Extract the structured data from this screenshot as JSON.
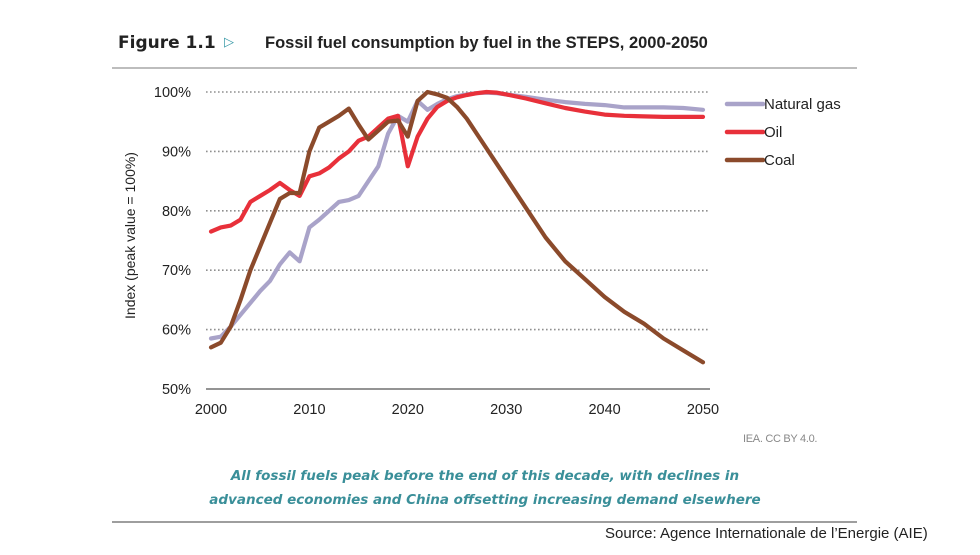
{
  "figure": {
    "label": "Figure 1.1",
    "arrow_icon": "triangle-right-icon",
    "title": "Fossil fuel consumption by fuel in the STEPS, 2000-2050",
    "credit": "IEA. CC BY 4.0.",
    "caption_line1": "All fossil fuels peak before the end of this decade, with declines in",
    "caption_line2": "advanced economies and China offsetting increasing demand elsewhere",
    "source": "Source: Agence Internationale de l’Energie (AIE)"
  },
  "chart_data": {
    "type": "line",
    "title": "Fossil fuel consumption by fuel in the STEPS, 2000-2050",
    "xlabel": "",
    "ylabel": "Index (peak value = 100%)",
    "xlim": [
      2000,
      2050
    ],
    "ylim": [
      50,
      100
    ],
    "x_ticks": [
      2000,
      2010,
      2020,
      2030,
      2040,
      2050
    ],
    "x_tick_labels": [
      "2000",
      "2010",
      "2020",
      "2030",
      "2040",
      "2050"
    ],
    "y_ticks": [
      50,
      60,
      70,
      80,
      90,
      100
    ],
    "y_tick_labels": [
      "50%",
      "60%",
      "70%",
      "80%",
      "90%",
      "100%"
    ],
    "grid": "horizontal-dotted",
    "legend_position": "top-right",
    "series": [
      {
        "name": "Natural gas",
        "color": "#a9a3c9",
        "x": [
          2000,
          2001,
          2002,
          2003,
          2004,
          2005,
          2006,
          2007,
          2008,
          2009,
          2010,
          2011,
          2012,
          2013,
          2014,
          2015,
          2016,
          2017,
          2018,
          2019,
          2020,
          2021,
          2022,
          2023,
          2024,
          2025,
          2026,
          2027,
          2028,
          2029,
          2030,
          2032,
          2034,
          2036,
          2038,
          2040,
          2042,
          2044,
          2046,
          2048,
          2050
        ],
        "values": [
          58.5,
          58.8,
          60.5,
          62.5,
          64.5,
          66.5,
          68.2,
          71.0,
          73.0,
          71.5,
          77.2,
          78.5,
          80.0,
          81.5,
          81.8,
          82.5,
          85.0,
          87.5,
          93.0,
          96.0,
          95.0,
          98.5,
          97.0,
          98.0,
          98.8,
          99.3,
          99.6,
          99.8,
          99.9,
          99.8,
          99.6,
          99.2,
          98.7,
          98.3,
          98.0,
          97.8,
          97.4,
          97.4,
          97.4,
          97.3,
          97.0
        ]
      },
      {
        "name": "Oil",
        "color": "#e8303a",
        "x": [
          2000,
          2001,
          2002,
          2003,
          2004,
          2005,
          2006,
          2007,
          2008,
          2009,
          2010,
          2011,
          2012,
          2013,
          2014,
          2015,
          2016,
          2017,
          2018,
          2019,
          2020,
          2021,
          2022,
          2023,
          2024,
          2025,
          2026,
          2027,
          2028,
          2029,
          2030,
          2032,
          2034,
          2036,
          2038,
          2040,
          2042,
          2044,
          2046,
          2048,
          2050
        ],
        "values": [
          76.5,
          77.2,
          77.5,
          78.5,
          81.5,
          82.5,
          83.5,
          84.7,
          83.5,
          82.5,
          85.8,
          86.3,
          87.3,
          88.8,
          90.0,
          91.8,
          92.5,
          94.0,
          95.5,
          96.0,
          87.5,
          92.5,
          95.5,
          97.5,
          98.5,
          99.1,
          99.5,
          99.8,
          100.0,
          99.9,
          99.6,
          98.9,
          98.1,
          97.3,
          96.7,
          96.2,
          96.0,
          95.9,
          95.8,
          95.8,
          95.8
        ]
      },
      {
        "name": "Coal",
        "color": "#8b4a2b",
        "x": [
          2000,
          2001,
          2002,
          2003,
          2004,
          2005,
          2006,
          2007,
          2008,
          2009,
          2010,
          2011,
          2012,
          2013,
          2014,
          2015,
          2016,
          2017,
          2018,
          2019,
          2020,
          2021,
          2022,
          2023,
          2024,
          2025,
          2026,
          2027,
          2028,
          2029,
          2030,
          2032,
          2034,
          2036,
          2038,
          2040,
          2042,
          2044,
          2046,
          2048,
          2050
        ],
        "values": [
          57.0,
          57.8,
          60.5,
          65.0,
          70.0,
          74.0,
          78.0,
          82.0,
          83.0,
          83.0,
          90.0,
          94.0,
          95.0,
          96.0,
          97.2,
          94.5,
          92.0,
          93.5,
          95.0,
          95.2,
          92.5,
          98.5,
          100.0,
          99.6,
          99.0,
          97.5,
          95.5,
          93.0,
          90.5,
          88.0,
          85.5,
          80.5,
          75.5,
          71.5,
          68.5,
          65.5,
          63.0,
          61.0,
          58.5,
          56.5,
          54.5
        ]
      }
    ]
  }
}
